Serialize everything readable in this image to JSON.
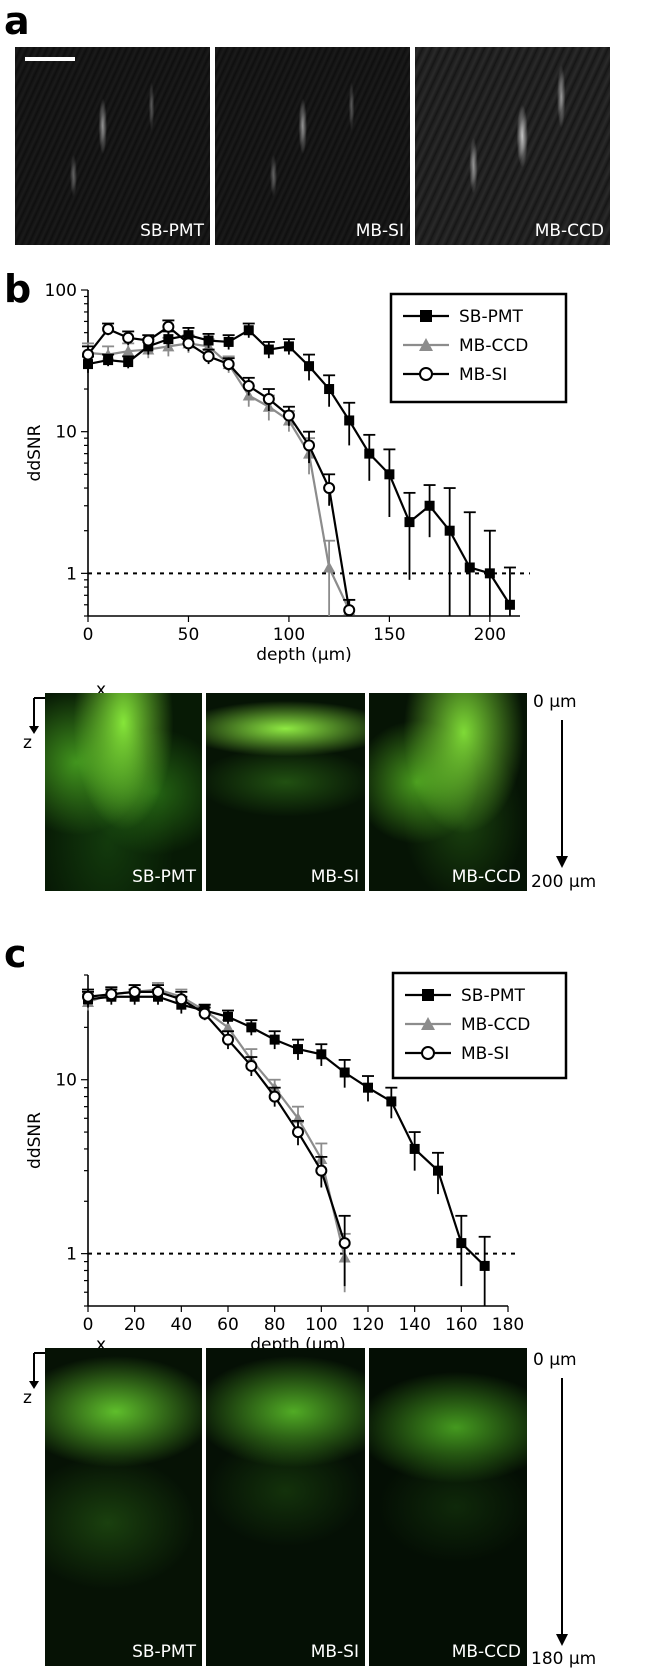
{
  "panel_labels": [
    "a",
    "b",
    "c"
  ],
  "panel_a": {
    "images": [
      {
        "label": "SB-PMT"
      },
      {
        "label": "MB-SI"
      },
      {
        "label": "MB-CCD"
      }
    ]
  },
  "panel_b_images": {
    "axis_x": "x",
    "axis_z": "z",
    "depth_top": "0 µm",
    "depth_bottom": "200 µm",
    "images": [
      {
        "label": "SB-PMT"
      },
      {
        "label": "MB-SI"
      },
      {
        "label": "MB-CCD"
      }
    ]
  },
  "panel_c_images": {
    "axis_x": "x",
    "axis_z": "z",
    "depth_top": "0 µm",
    "depth_bottom": "180 µm",
    "images": [
      {
        "label": "SB-PMT"
      },
      {
        "label": "MB-SI"
      },
      {
        "label": "MB-CCD"
      }
    ]
  },
  "chart_data": [
    {
      "type": "line",
      "panel": "b",
      "xlabel": "depth (µm)",
      "ylabel": "ddSNR",
      "xlim": [
        0,
        215
      ],
      "ylim": [
        0.5,
        100
      ],
      "yscale": "log",
      "xticks": [
        0,
        50,
        100,
        150,
        200
      ],
      "yticks": [
        1,
        10,
        100
      ],
      "threshold": 1,
      "legend": "top-right",
      "series": [
        {
          "name": "SB-PMT",
          "marker": "square",
          "color": "#000000",
          "x": [
            0,
            10,
            20,
            30,
            40,
            50,
            60,
            70,
            80,
            90,
            100,
            110,
            120,
            130,
            140,
            150,
            160,
            170,
            180,
            190,
            200,
            210
          ],
          "y": [
            30,
            32,
            31,
            40,
            45,
            48,
            44,
            43,
            52,
            38,
            40,
            29,
            20,
            12,
            7,
            5,
            2.3,
            3,
            2,
            1.1,
            1,
            0.6
          ],
          "err": [
            4,
            3,
            3,
            5,
            6,
            6,
            5,
            5,
            6,
            5,
            5,
            6,
            5,
            4,
            2.5,
            2.5,
            1.4,
            1.2,
            2,
            1.6,
            1,
            0.5
          ]
        },
        {
          "name": "MB-CCD",
          "marker": "triangle",
          "color": "#8c8c8c",
          "x": [
            0,
            10,
            20,
            30,
            40,
            50,
            60,
            70,
            80,
            90,
            100,
            110,
            120,
            130
          ],
          "y": [
            36,
            35,
            37,
            38,
            40,
            42,
            40,
            30,
            18,
            15,
            12,
            7,
            1.1,
            0.55
          ],
          "err": [
            6,
            5,
            5,
            5,
            6,
            6,
            5,
            4,
            3,
            3,
            2,
            2,
            0.6,
            0.1
          ]
        },
        {
          "name": "MB-SI",
          "marker": "circle",
          "color": "#000000",
          "x": [
            0,
            10,
            20,
            30,
            40,
            50,
            60,
            70,
            80,
            90,
            100,
            110,
            120,
            130
          ],
          "y": [
            35,
            53,
            46,
            44,
            55,
            42,
            34,
            30,
            21,
            17,
            13,
            8,
            4,
            0.55
          ],
          "err": [
            5,
            5,
            5,
            4,
            6,
            5,
            4,
            3,
            3,
            3,
            2,
            2,
            1,
            0.1
          ]
        }
      ]
    },
    {
      "type": "line",
      "panel": "c",
      "xlabel": "depth (µm)",
      "ylabel": "ddSNR",
      "xlim": [
        0,
        180
      ],
      "ylim": [
        0.5,
        40
      ],
      "yscale": "log",
      "xticks": [
        0,
        20,
        40,
        60,
        80,
        100,
        120,
        140,
        160,
        180
      ],
      "yticks": [
        1,
        10
      ],
      "threshold": 1,
      "legend": "top-right",
      "series": [
        {
          "name": "SB-PMT",
          "marker": "square",
          "color": "#000000",
          "x": [
            0,
            10,
            20,
            30,
            40,
            50,
            60,
            70,
            80,
            90,
            100,
            110,
            120,
            130,
            140,
            150,
            160,
            170
          ],
          "y": [
            29,
            30,
            30,
            30,
            27,
            25,
            23,
            20,
            17,
            15,
            14,
            11,
            9,
            7.5,
            4,
            3,
            1.15,
            0.85
          ],
          "err": [
            3,
            3,
            3,
            3,
            3,
            2,
            2,
            2,
            2,
            2,
            2,
            2,
            1.5,
            1.5,
            1,
            0.8,
            0.5,
            0.4
          ]
        },
        {
          "name": "MB-CCD",
          "marker": "triangle",
          "color": "#8c8c8c",
          "x": [
            0,
            10,
            20,
            30,
            40,
            50,
            60,
            70,
            80,
            90,
            100,
            110
          ],
          "y": [
            28,
            31,
            32,
            33,
            30,
            25,
            20,
            13,
            9,
            6,
            3.5,
            0.95
          ],
          "err": [
            3,
            3,
            3,
            3,
            3,
            2,
            2,
            2,
            1,
            1,
            0.8,
            0.35
          ]
        },
        {
          "name": "MB-SI",
          "marker": "circle",
          "color": "#000000",
          "x": [
            0,
            10,
            20,
            30,
            40,
            50,
            60,
            70,
            80,
            90,
            100,
            110
          ],
          "y": [
            30,
            31,
            32,
            32,
            29,
            24,
            17,
            12,
            8,
            5,
            3,
            1.15
          ],
          "err": [
            3,
            3,
            3,
            3,
            3,
            2,
            2,
            1.5,
            1,
            0.8,
            0.6,
            0.5
          ]
        }
      ]
    }
  ]
}
